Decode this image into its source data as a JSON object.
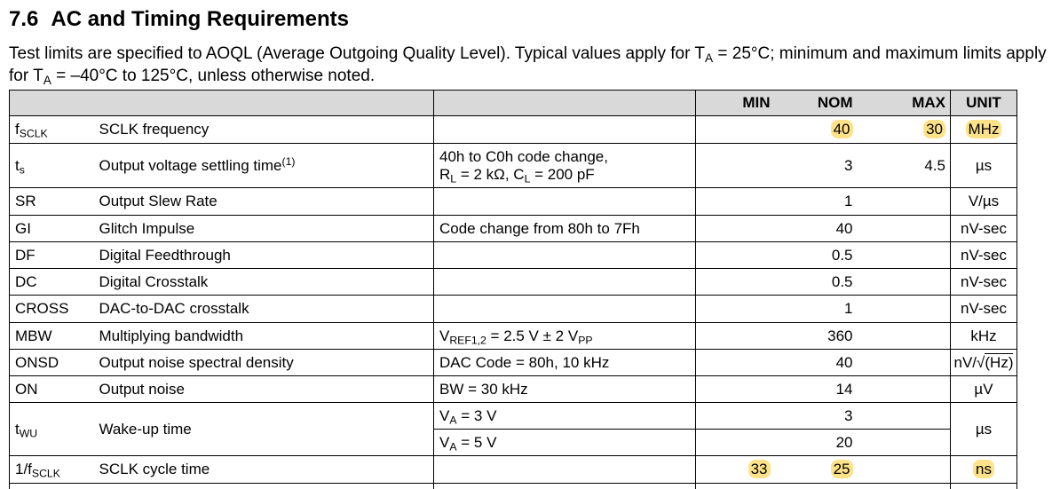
{
  "section": {
    "number": "7.6",
    "title": "AC and Timing Requirements"
  },
  "intro": {
    "p1": "Test limits are specified to AOQL (Average Outgoing Quality Level). Typical values apply for T",
    "p1_sub": "A",
    "p2": " = 25°C; minimum and maximum limits apply for T",
    "p2_sub": "A",
    "p3": " = –40°C to 125°C, unless otherwise noted."
  },
  "highlight_color": "#fde28a",
  "table": {
    "headers": {
      "min": "MIN",
      "nom": "NOM",
      "max": "MAX",
      "unit": "UNIT"
    },
    "rows": [
      {
        "sym": "f",
        "sym_sub": "SCLK",
        "param": "SCLK frequency",
        "cond": "",
        "min": "",
        "nom": "40",
        "max": "30",
        "unit": "MHz"
      },
      {
        "sym": "t",
        "sym_sub": "S",
        "param": "Output voltage settling time",
        "param_sup": "(1)",
        "cond_l1": "40h to C0h code change,",
        "cond_l2a": "R",
        "cond_l2a_sub": "L",
        "cond_l2b": " = 2 kΩ, C",
        "cond_l2b_sub": "L",
        "cond_l2c": " = 200 pF",
        "min": "",
        "nom": "3",
        "max": "4.5",
        "unit": "µs"
      },
      {
        "sym": "SR",
        "param": "Output Slew Rate",
        "cond": "",
        "nom": "1",
        "unit": "V/µs"
      },
      {
        "sym": "GI",
        "param": "Glitch Impulse",
        "cond": "Code change from 80h to 7Fh",
        "nom": "40",
        "unit": "nV-sec"
      },
      {
        "sym": "DF",
        "param": "Digital Feedthrough",
        "cond": "",
        "nom": "0.5",
        "unit": "nV-sec"
      },
      {
        "sym": "DC",
        "param": "Digital Crosstalk",
        "cond": "",
        "nom": "0.5",
        "unit": "nV-sec"
      },
      {
        "sym": "CROSS",
        "param": "DAC-to-DAC crosstalk",
        "cond": "",
        "nom": "1",
        "unit": "nV-sec"
      },
      {
        "sym": "MBW",
        "param": "Multiplying bandwidth",
        "cond_a": "V",
        "cond_a_sub": "REF1,2",
        "cond_b": " = 2.5 V ± 2 V",
        "cond_b_sub": "PP",
        "nom": "360",
        "unit": "kHz"
      },
      {
        "sym": "ONSD",
        "param": "Output noise spectral density",
        "cond": "DAC Code = 80h, 10 kHz",
        "nom": "40",
        "unit_a": "nV/√",
        "unit_b": "(Hz)"
      },
      {
        "sym": "ON",
        "param": "Output noise",
        "cond": "BW = 30 kHz",
        "nom": "14",
        "unit": "µV"
      },
      {
        "sym": "t",
        "sym_sub": "WU",
        "param": "Wake-up time",
        "sub_rows": [
          {
            "cond": "V",
            "cond_sub": "A",
            "cond_tail": " = 3 V",
            "nom": "3"
          },
          {
            "cond": "V",
            "cond_sub": "A",
            "cond_tail": " = 5 V",
            "nom": "20"
          }
        ],
        "unit": "µs"
      },
      {
        "sym": "1/f",
        "sym_sub": "SCLK",
        "param": "SCLK cycle time",
        "cond": "",
        "min": "33",
        "nom": "25",
        "max": "",
        "unit": "ns"
      }
    ]
  }
}
